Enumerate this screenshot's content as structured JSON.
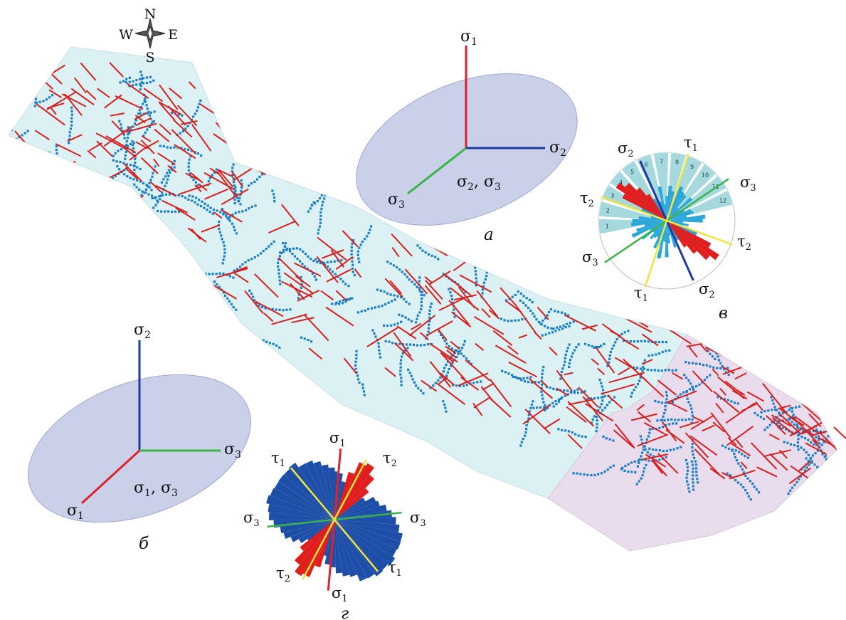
{
  "compass": {
    "n": "N",
    "s": "S",
    "e": "E",
    "w": "W"
  },
  "colors": {
    "map_fill": "#dcf1f3",
    "map_fill_east": "#e9dded",
    "lineament_red": "#d81e1e",
    "lineament_blue": "#1a7fc4",
    "ellipse_fill": "#c9cee8",
    "axis_red": "#e0202a",
    "axis_blue": "#1e3aa0",
    "axis_green": "#3cb34a",
    "tau_yellow": "#f2e43a",
    "rose_blue": "#1e4fa8",
    "rose_red": "#e01e1e",
    "rose_cyan": "#2aa6d8",
    "rose_teal": "#8fd0d6"
  },
  "diagram_a": {
    "panel_label": "а",
    "sigma1": "σ",
    "sigma1_sub": "1",
    "sigma2": "σ",
    "sigma2_sub": "2",
    "sigma3": "σ",
    "sigma3_sub": "3",
    "plane_label": "σ2, σ3"
  },
  "diagram_b": {
    "panel_label": "б",
    "sigma2": "σ",
    "sigma2_sub": "2",
    "sigma3": "σ",
    "sigma3_sub": "3",
    "sigma1": "σ",
    "sigma1_sub": "1",
    "plane_label": "σ1, σ3"
  },
  "rose_v": {
    "panel_label": "в",
    "labels": {
      "sigma2_top": "σ2",
      "tau1_top": "τ1",
      "sigma3_right": "σ3",
      "tau2_left": "τ2",
      "tau2_right": "τ2",
      "sigma3_left": "σ3",
      "tau1_bottom": "τ1",
      "sigma2_bottom": "σ2"
    },
    "ring_numbers": [
      "1",
      "2",
      "3",
      "4",
      "5",
      "6",
      "7",
      "8",
      "9",
      "10",
      "11",
      "12"
    ]
  },
  "rose_g": {
    "panel_label": "г",
    "labels": {
      "sigma1_top": "σ1",
      "tau1_left": "τ1",
      "tau2_top": "τ2",
      "sigma3_left": "σ3",
      "sigma3_right": "σ3",
      "tau2_bottom": "τ2",
      "tau1_right": "τ1",
      "sigma1_bottom": "σ1"
    }
  }
}
